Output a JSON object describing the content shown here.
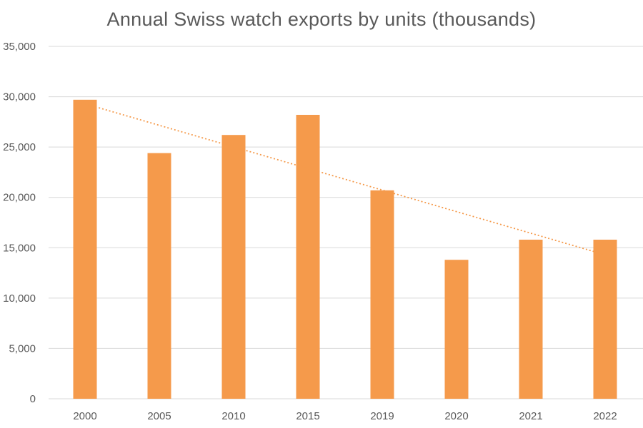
{
  "chart_data": {
    "type": "bar",
    "title": "Annual Swiss watch exports by units (thousands)",
    "xlabel": "",
    "ylabel": "",
    "categories": [
      "2000",
      "2005",
      "2010",
      "2015",
      "2019",
      "2020",
      "2021",
      "2022"
    ],
    "values": [
      29700,
      24400,
      26200,
      28200,
      20700,
      13800,
      15800,
      15800
    ],
    "ylim": [
      0,
      35000
    ],
    "yticks": [
      "0",
      "5,000",
      "10,000",
      "15,000",
      "20,000",
      "25,000",
      "30,000",
      "35,000"
    ],
    "grid": true,
    "legend": "none",
    "trendline": {
      "type": "linear",
      "style": "dotted",
      "start": 29300,
      "end": 14300
    },
    "colors": {
      "bar": "#f59a4b",
      "trendline": "#f59a4b",
      "grid": "#d9d9d9",
      "text": "#595959"
    }
  }
}
